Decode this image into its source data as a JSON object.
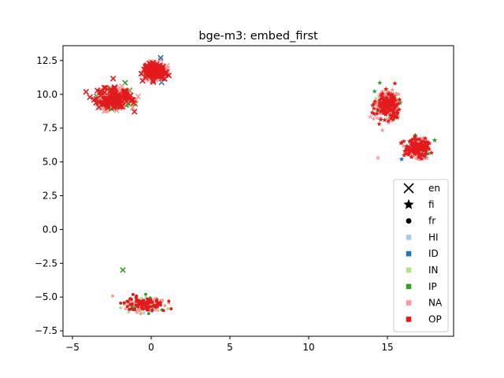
{
  "chart_data": {
    "type": "scatter",
    "title": "bge-m3: embed_first",
    "xlabel": "",
    "ylabel": "",
    "xlim": [
      -5.6,
      19.2
    ],
    "ylim": [
      -7.9,
      13.6
    ],
    "xticks": [
      -5,
      0,
      5,
      10,
      15
    ],
    "xtick_labels": [
      "−5",
      "0",
      "5",
      "10",
      "15"
    ],
    "yticks": [
      -7.5,
      -5.0,
      -2.5,
      0.0,
      2.5,
      5.0,
      7.5,
      10.0,
      12.5
    ],
    "ytick_labels": [
      "−7.5",
      "−5.0",
      "−2.5",
      "0.0",
      "2.5",
      "5.0",
      "7.5",
      "10.0",
      "12.5"
    ],
    "grid": false,
    "legend_position": "lower-right",
    "legend": {
      "markers": [
        {
          "label": "en",
          "shape": "x"
        },
        {
          "label": "fi",
          "shape": "star"
        },
        {
          "label": "fr",
          "shape": "circle"
        }
      ],
      "classes": [
        {
          "label": "HI",
          "color": "#a6cee3"
        },
        {
          "label": "ID",
          "color": "#1f78b4"
        },
        {
          "label": "IN",
          "color": "#b2df8a"
        },
        {
          "label": "IP",
          "color": "#33a02c"
        },
        {
          "label": "NA",
          "color": "#fb9a99"
        },
        {
          "label": "OP",
          "color": "#e31a1c"
        }
      ]
    },
    "clusters": [
      {
        "language": "en",
        "shape": "x",
        "region": "upper-left",
        "center": [
          -2.3,
          9.7
        ],
        "spread": [
          1.0,
          0.7
        ],
        "classes": [
          "NA",
          "OP",
          "IN",
          "IP",
          "HI",
          "ID"
        ]
      },
      {
        "language": "en",
        "shape": "x",
        "region": "upper-left-tail",
        "center": [
          0.2,
          11.7
        ],
        "spread": [
          0.6,
          0.5
        ],
        "classes": [
          "OP",
          "NA",
          "ID"
        ]
      },
      {
        "language": "fi",
        "shape": "star",
        "region": "upper-right",
        "center": [
          15.0,
          9.2
        ],
        "spread": [
          0.7,
          0.9
        ],
        "classes": [
          "NA",
          "IN",
          "IP",
          "OP"
        ]
      },
      {
        "language": "fi",
        "shape": "star",
        "region": "upper-right-lower",
        "center": [
          16.9,
          6.0
        ],
        "spread": [
          0.6,
          0.6
        ],
        "classes": [
          "OP",
          "NA",
          "IP",
          "ID"
        ]
      },
      {
        "language": "fr",
        "shape": "circle",
        "region": "bottom",
        "center": [
          -0.4,
          -5.5
        ],
        "spread": [
          1.1,
          0.5
        ],
        "classes": [
          "NA",
          "IP",
          "OP",
          "IN",
          "ID",
          "HI"
        ]
      }
    ],
    "outliers": [
      {
        "x": -1.8,
        "y": -3.0,
        "shape": "x",
        "class": "IP"
      },
      {
        "x": 18.0,
        "y": 6.6,
        "shape": "star",
        "class": "IP"
      },
      {
        "x": 14.4,
        "y": 5.3,
        "shape": "star",
        "class": "NA"
      },
      {
        "x": 15.9,
        "y": 5.2,
        "shape": "star",
        "class": "ID"
      },
      {
        "x": 0.6,
        "y": 12.7,
        "shape": "x",
        "class": "ID"
      }
    ]
  }
}
